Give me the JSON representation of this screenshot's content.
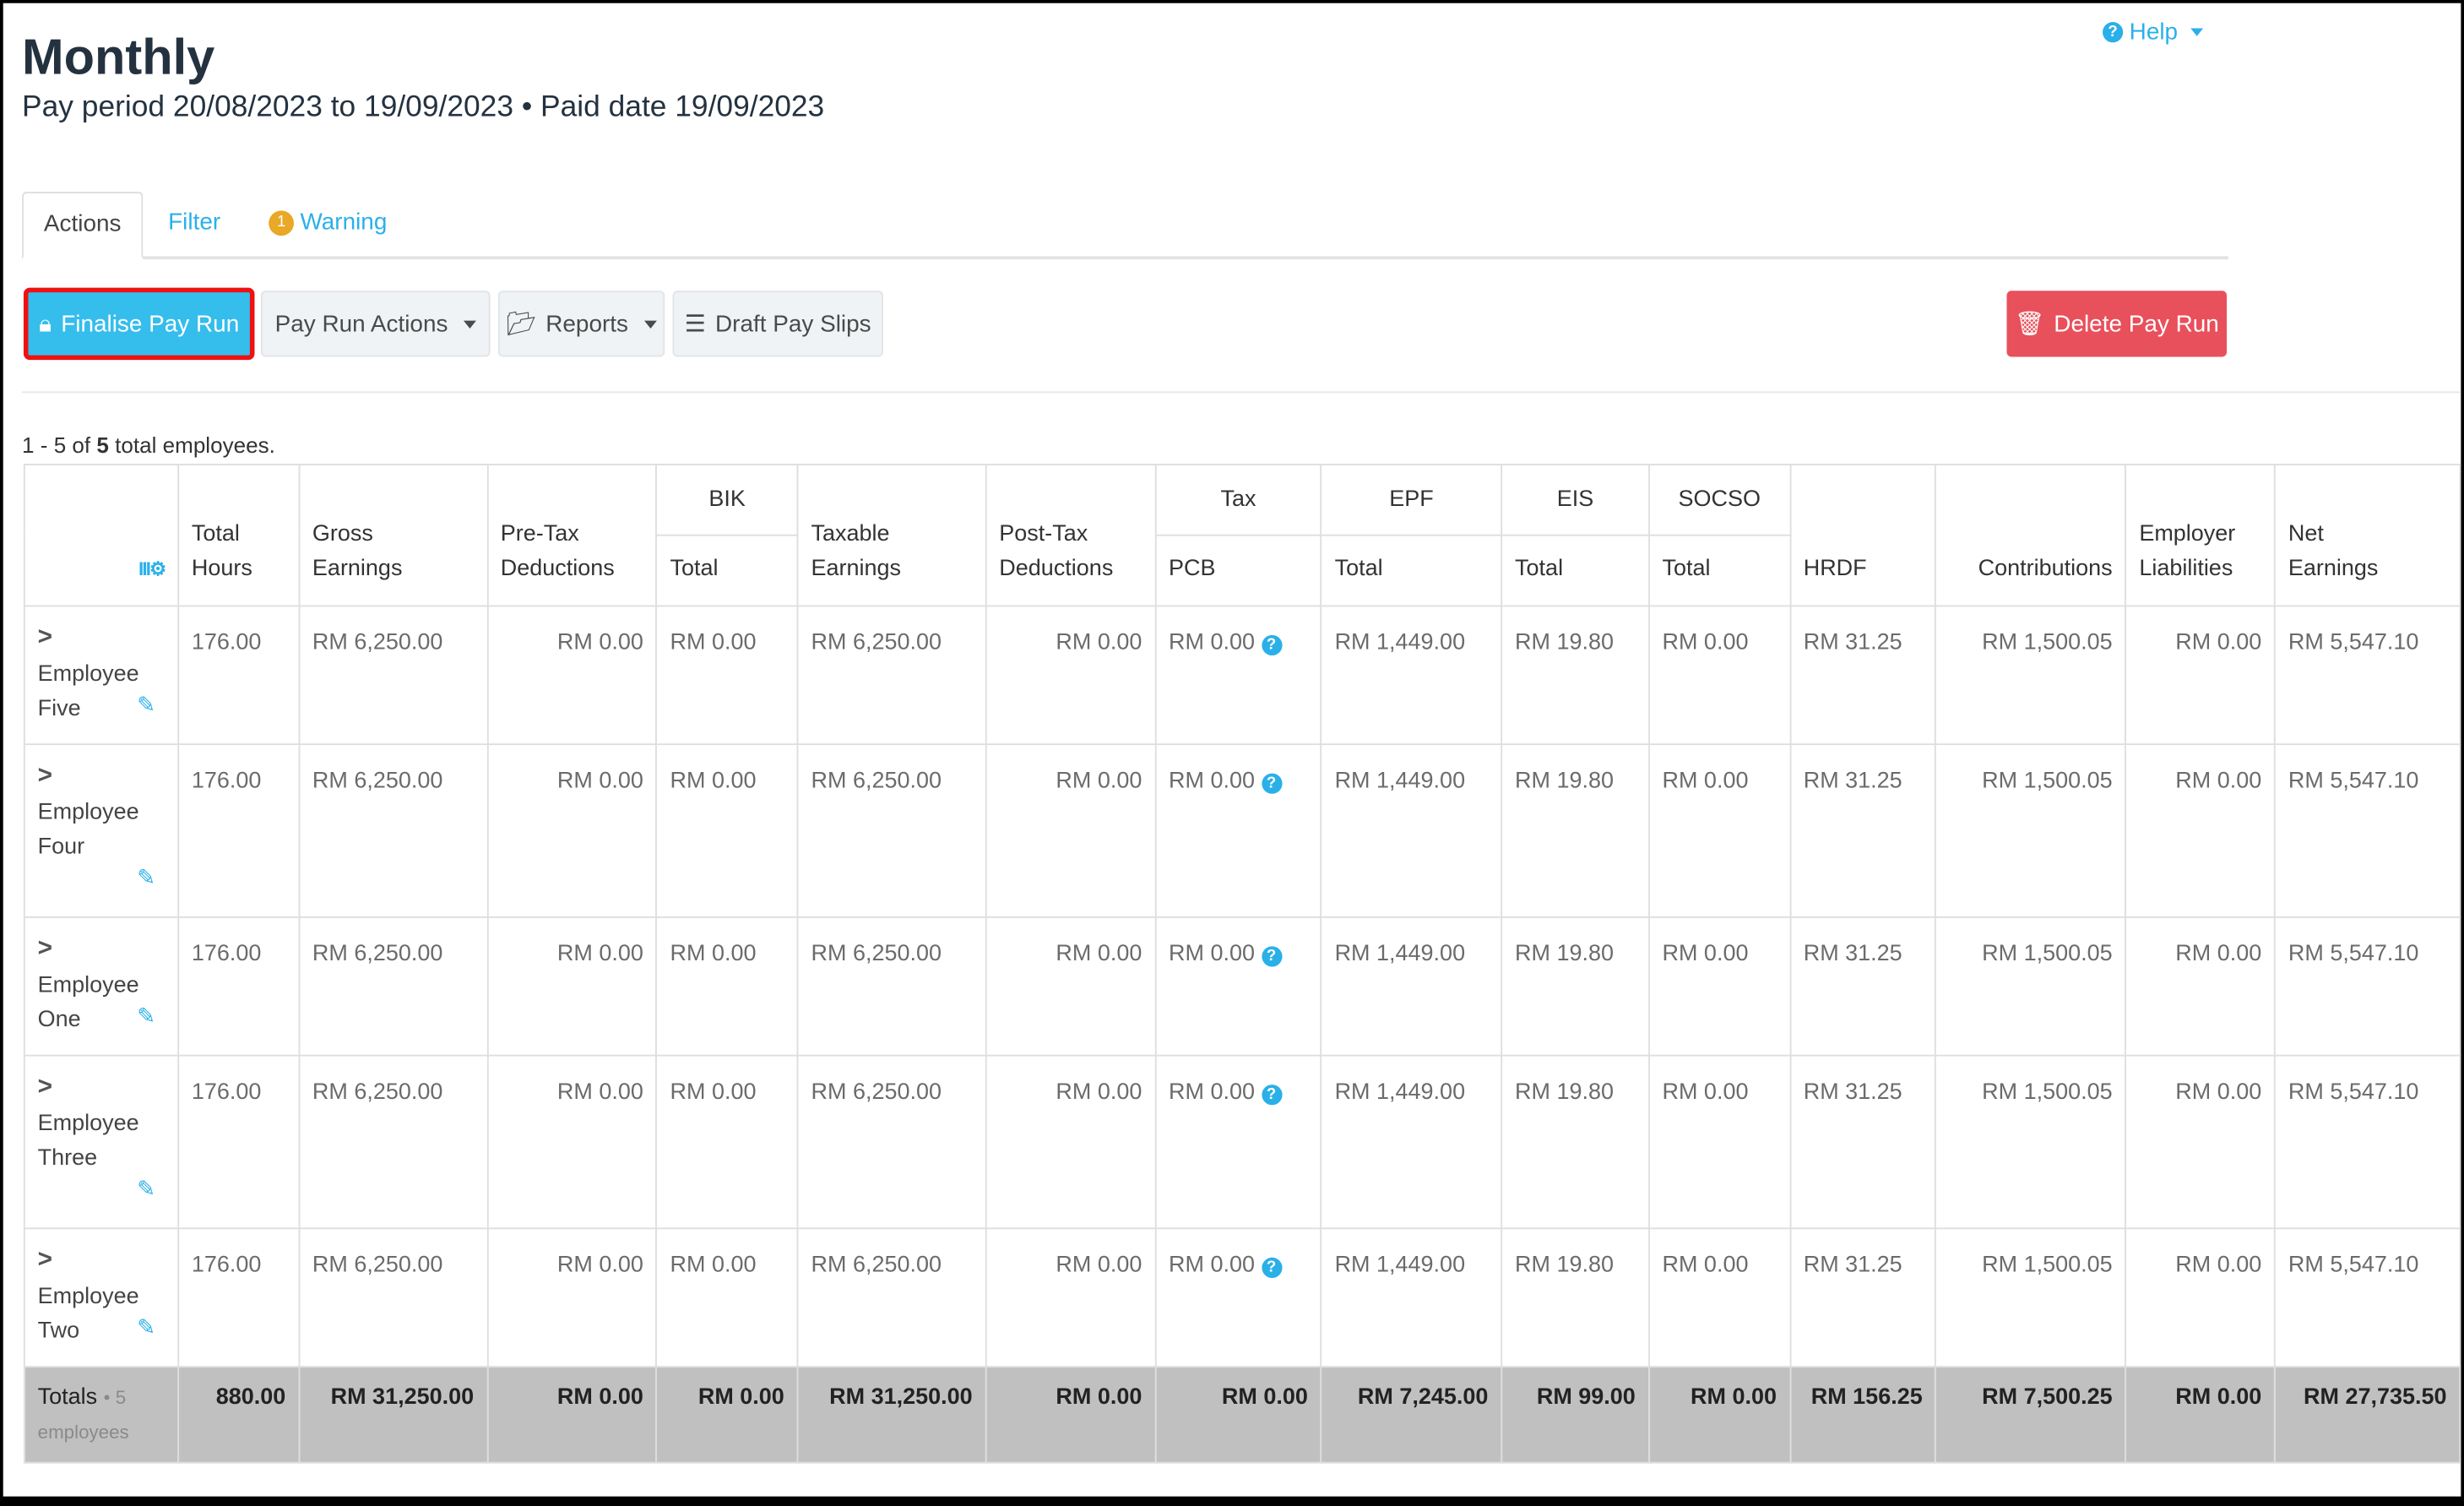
{
  "header": {
    "title": "Monthly",
    "subtitle": "Pay period 20/08/2023 to 19/09/2023 • Paid date 19/09/2023",
    "help": "Help"
  },
  "tabs": {
    "actions": "Actions",
    "filter": "Filter",
    "warning": "Warning",
    "warning_count": "1"
  },
  "toolbar": {
    "finalise": "Finalise Pay Run",
    "pay_run_actions": "Pay Run Actions",
    "reports": "Reports",
    "draft_pay_slips": "Draft Pay Slips",
    "delete": "Delete Pay Run"
  },
  "summary": {
    "prefix": "1 - 5 of ",
    "count": "5",
    "suffix": " total employees."
  },
  "colors": {
    "primary": "#35bdec",
    "danger": "#e8505b",
    "highlight": "#ee1111",
    "warning": "#e9a825"
  },
  "table": {
    "groups": {
      "bik": "BIK",
      "tax": "Tax",
      "epf": "EPF",
      "eis": "EIS",
      "socso": "SOCSO"
    },
    "headers": {
      "total_hours": [
        "Total",
        "Hours"
      ],
      "gross": [
        "Gross",
        "Earnings"
      ],
      "pretax": [
        "Pre-Tax",
        "Deductions"
      ],
      "bik_total": "Total",
      "taxable": [
        "Taxable",
        "Earnings"
      ],
      "posttax": [
        "Post-Tax",
        "Deductions"
      ],
      "pcb": "PCB",
      "epf_total": "Total",
      "eis_total": "Total",
      "socso_total": "Total",
      "hrdf": "HRDF",
      "contributions": "Contributions",
      "employer": [
        "Employer",
        "Liabilities"
      ],
      "net": [
        "Net",
        "Earnings"
      ]
    },
    "rows": [
      {
        "name": [
          "Employee",
          "Five"
        ],
        "values": [
          "176.00",
          "RM 6,250.00",
          "RM 0.00",
          "RM 0.00",
          "RM 6,250.00",
          "RM 0.00",
          "RM 0.00",
          "RM 1,449.00",
          "RM 19.80",
          "RM 0.00",
          "RM 31.25",
          "RM 1,500.05",
          "RM 0.00",
          "RM 5,547.10"
        ]
      },
      {
        "name": [
          "Employee",
          "Four"
        ],
        "values": [
          "176.00",
          "RM 6,250.00",
          "RM 0.00",
          "RM 0.00",
          "RM 6,250.00",
          "RM 0.00",
          "RM 0.00",
          "RM 1,449.00",
          "RM 19.80",
          "RM 0.00",
          "RM 31.25",
          "RM 1,500.05",
          "RM 0.00",
          "RM 5,547.10"
        ]
      },
      {
        "name": [
          "Employee",
          "One"
        ],
        "values": [
          "176.00",
          "RM 6,250.00",
          "RM 0.00",
          "RM 0.00",
          "RM 6,250.00",
          "RM 0.00",
          "RM 0.00",
          "RM 1,449.00",
          "RM 19.80",
          "RM 0.00",
          "RM 31.25",
          "RM 1,500.05",
          "RM 0.00",
          "RM 5,547.10"
        ]
      },
      {
        "name": [
          "Employee",
          "Three"
        ],
        "values": [
          "176.00",
          "RM 6,250.00",
          "RM 0.00",
          "RM 0.00",
          "RM 6,250.00",
          "RM 0.00",
          "RM 0.00",
          "RM 1,449.00",
          "RM 19.80",
          "RM 0.00",
          "RM 31.25",
          "RM 1,500.05",
          "RM 0.00",
          "RM 5,547.10"
        ]
      },
      {
        "name": [
          "Employee",
          "Two"
        ],
        "values": [
          "176.00",
          "RM 6,250.00",
          "RM 0.00",
          "RM 0.00",
          "RM 6,250.00",
          "RM 0.00",
          "RM 0.00",
          "RM 1,449.00",
          "RM 19.80",
          "RM 0.00",
          "RM 31.25",
          "RM 1,500.05",
          "RM 0.00",
          "RM 5,547.10"
        ]
      }
    ],
    "totals": {
      "label": "Totals",
      "sub": "• 5 employees",
      "values": [
        "880.00",
        "RM 31,250.00",
        "RM 0.00",
        "RM 0.00",
        "RM 31,250.00",
        "RM 0.00",
        "RM 0.00",
        "RM 7,245.00",
        "RM 99.00",
        "RM 0.00",
        "RM 156.25",
        "RM 7,500.25",
        "RM 0.00",
        "RM 27,735.50"
      ]
    }
  }
}
